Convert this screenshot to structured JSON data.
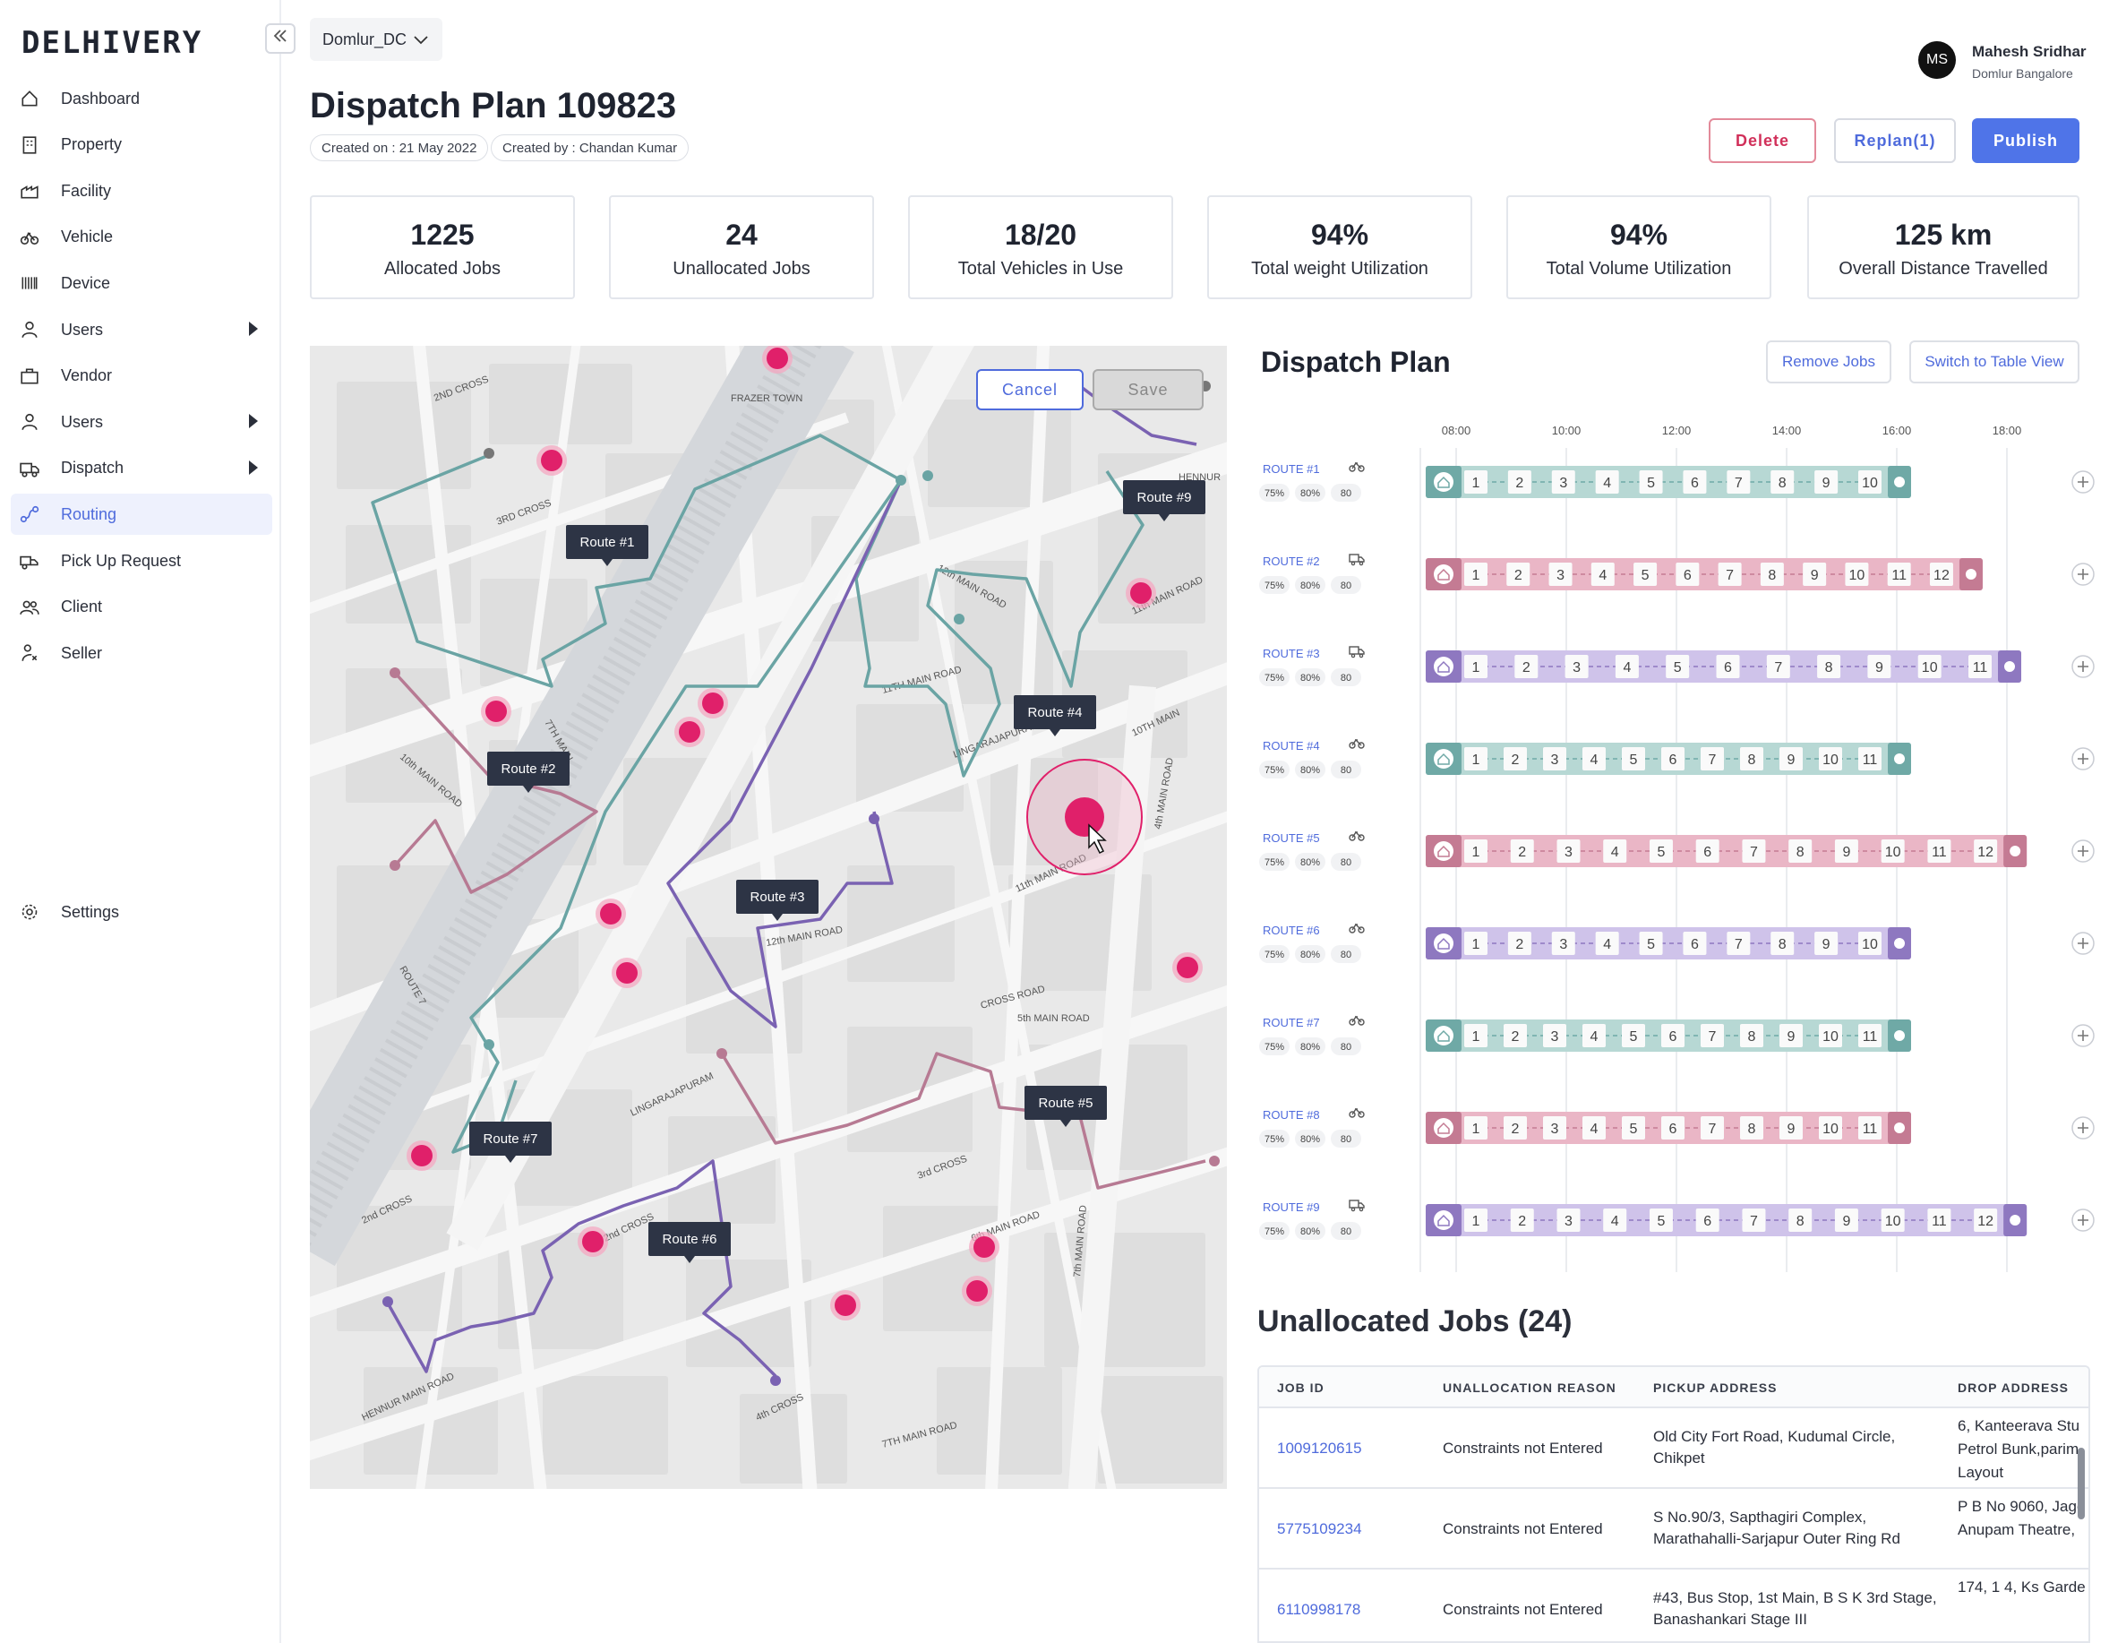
{
  "brand": "DELHIVERY",
  "sidebar": {
    "items": [
      {
        "label": "Dashboard",
        "icon": "home-icon",
        "caret": false
      },
      {
        "label": "Property",
        "icon": "building-icon",
        "caret": false
      },
      {
        "label": "Facility",
        "icon": "facility-icon",
        "caret": false
      },
      {
        "label": "Vehicle",
        "icon": "bicycle-icon",
        "caret": false
      },
      {
        "label": "Device",
        "icon": "barcode-icon",
        "caret": false
      },
      {
        "label": "Users",
        "icon": "user-icon",
        "caret": true
      },
      {
        "label": "Vendor",
        "icon": "briefcase-icon",
        "caret": false
      },
      {
        "label": "Users",
        "icon": "user-icon",
        "caret": true
      },
      {
        "label": "Dispatch",
        "icon": "truck-icon",
        "caret": true
      },
      {
        "label": "Routing",
        "icon": "route-icon",
        "caret": false,
        "active": true
      },
      {
        "label": "Pick Up Request",
        "icon": "pickup-icon",
        "caret": false
      },
      {
        "label": "Client",
        "icon": "users-icon",
        "caret": false
      },
      {
        "label": "Seller",
        "icon": "seller-icon",
        "caret": false
      }
    ],
    "settings": "Settings"
  },
  "header": {
    "dc": "Domlur_DC",
    "title": "Dispatch Plan 109823",
    "created_on": "Created on : 21 May 2022",
    "created_by": "Created by : Chandan Kumar",
    "user_initials": "MS",
    "user_name": "Mahesh Sridhar",
    "user_location": "Domlur Bangalore",
    "delete": "Delete",
    "replan": "Replan(1)",
    "publish": "Publish"
  },
  "stats": [
    {
      "value": "1225",
      "label": "Allocated Jobs"
    },
    {
      "value": "24",
      "label": "Unallocated Jobs"
    },
    {
      "value": "18/20",
      "label": "Total Vehicles in Use"
    },
    {
      "value": "94%",
      "label": "Total weight Utilization"
    },
    {
      "value": "94%",
      "label": "Total Volume Utilization"
    },
    {
      "value": "125 km",
      "label": "Overall Distance Travelled"
    }
  ],
  "map": {
    "cancel": "Cancel",
    "save": "Save",
    "route_labels": [
      "Route #1",
      "Route #2",
      "Route #3",
      "Route #4",
      "Route #5",
      "Route #6",
      "Route #7",
      "Route #9"
    ],
    "street_labels": [
      "2ND CROSS",
      "FRAZER TOWN",
      "3RD CROSS",
      "7TH MAIN",
      "10th MAIN ROAD",
      "11TH MAIN ROAD",
      "11th MAIN ROAD",
      "LINGARAJAPURAM",
      "12th MAIN ROAD",
      "12th MAIN ROAD",
      "10TH MAIN",
      "11th MAIN ROAD",
      "4th MAIN ROAD",
      "ROUTE 7",
      "CROSS ROAD",
      "5th MAIN ROAD",
      "LINGARAJAPURAM",
      "2nd CROSS",
      "2nd CROSS",
      "3rd CROSS",
      "6th MAIN ROAD",
      "7th MAIN ROAD",
      "HENNUR MAIN ROAD",
      "4th CROSS",
      "7TH MAIN ROAD",
      "HENNUR"
    ]
  },
  "dispatch_plan": {
    "title": "Dispatch Plan",
    "remove_jobs": "Remove Jobs",
    "switch_view": "Switch to Table View",
    "times": [
      "08:00",
      "10:00",
      "12:00",
      "14:00",
      "16:00",
      "18:00"
    ],
    "routes": [
      {
        "name": "ROUTE #1",
        "vehicle": "bicycle-icon",
        "stats": [
          "75%",
          "80%",
          "80"
        ],
        "color": "#6fa9a6",
        "light": "#b7d8d4",
        "stops": [
          "1",
          "2",
          "3",
          "4",
          "5",
          "6",
          "7",
          "8",
          "9",
          "10"
        ],
        "end": 16.0
      },
      {
        "name": "ROUTE #2",
        "vehicle": "truck-icon",
        "stats": [
          "75%",
          "80%",
          "80"
        ],
        "color": "#c47b93",
        "light": "#eab6c6",
        "stops": [
          "1",
          "2",
          "3",
          "4",
          "5",
          "6",
          "7",
          "8",
          "9",
          "10",
          "11",
          "12"
        ],
        "end": 17.3
      },
      {
        "name": "ROUTE #3",
        "vehicle": "truck-icon",
        "stats": [
          "75%",
          "80%",
          "80"
        ],
        "color": "#8e78c0",
        "light": "#cfc3ea",
        "stops": [
          "1",
          "2",
          "3",
          "4",
          "5",
          "6",
          "7",
          "8",
          "9",
          "10",
          "11"
        ],
        "end": 18.0
      },
      {
        "name": "ROUTE #4",
        "vehicle": "bicycle-icon",
        "stats": [
          "75%",
          "80%",
          "80"
        ],
        "color": "#6fa9a6",
        "light": "#b7d8d4",
        "stops": [
          "1",
          "2",
          "3",
          "4",
          "5",
          "6",
          "7",
          "8",
          "9",
          "10",
          "11"
        ],
        "end": 16.0
      },
      {
        "name": "ROUTE #5",
        "vehicle": "bicycle-icon",
        "stats": [
          "75%",
          "80%",
          "80"
        ],
        "color": "#c47b93",
        "light": "#eab6c6",
        "stops": [
          "1",
          "2",
          "3",
          "4",
          "5",
          "6",
          "7",
          "8",
          "9",
          "10",
          "11",
          "12"
        ],
        "end": 18.1
      },
      {
        "name": "ROUTE #6",
        "vehicle": "bicycle-icon",
        "stats": [
          "75%",
          "80%",
          "80"
        ],
        "color": "#8e78c0",
        "light": "#cfc3ea",
        "stops": [
          "1",
          "2",
          "3",
          "4",
          "5",
          "6",
          "7",
          "8",
          "9",
          "10"
        ],
        "end": 16.0
      },
      {
        "name": "ROUTE #7",
        "vehicle": "bicycle-icon",
        "stats": [
          "75%",
          "80%",
          "80"
        ],
        "color": "#6fa9a6",
        "light": "#b7d8d4",
        "stops": [
          "1",
          "2",
          "3",
          "4",
          "5",
          "6",
          "7",
          "8",
          "9",
          "10",
          "11"
        ],
        "end": 16.0
      },
      {
        "name": "ROUTE #8",
        "vehicle": "bicycle-icon",
        "stats": [
          "75%",
          "80%",
          "80"
        ],
        "color": "#c47b93",
        "light": "#eab6c6",
        "stops": [
          "1",
          "2",
          "3",
          "4",
          "5",
          "6",
          "7",
          "8",
          "9",
          "10",
          "11"
        ],
        "end": 16.0
      },
      {
        "name": "ROUTE #9",
        "vehicle": "truck-icon",
        "stats": [
          "75%",
          "80%",
          "80"
        ],
        "color": "#8e78c0",
        "light": "#cfc3ea",
        "stops": [
          "1",
          "2",
          "3",
          "4",
          "5",
          "6",
          "7",
          "8",
          "9",
          "10",
          "11",
          "12"
        ],
        "end": 18.1
      }
    ]
  },
  "unallocated": {
    "title": "Unallocated Jobs (24)",
    "headers": [
      "JOB ID",
      "UNALLOCATION REASON",
      "PICKUP ADDRESS",
      "DROP ADDRESS"
    ],
    "rows": [
      {
        "job_id": "1009120615",
        "reason": "Constraints not Entered",
        "pickup": [
          "Old City Fort Road, Kudumal Circle,",
          "Chikpet"
        ],
        "drop": [
          "6, Kanteerava Stu",
          "Petrol Bunk,parim",
          "Layout"
        ]
      },
      {
        "job_id": "5775109234",
        "reason": "Constraints not Entered",
        "pickup": [
          "S No.90/3, Sapthagiri Complex,",
          "Marathahalli-Sarjapur Outer Ring Rd"
        ],
        "drop": [
          "P B No 9060, Jagc",
          "Anupam Theatre,"
        ]
      },
      {
        "job_id": "6110998178",
        "reason": "Constraints not Entered",
        "pickup": [
          "#43, Bus Stop, 1st Main, B S K 3rd Stage,",
          "Banashankari Stage III"
        ],
        "drop": [
          "174, 1 4, Ks Garde"
        ]
      }
    ]
  }
}
